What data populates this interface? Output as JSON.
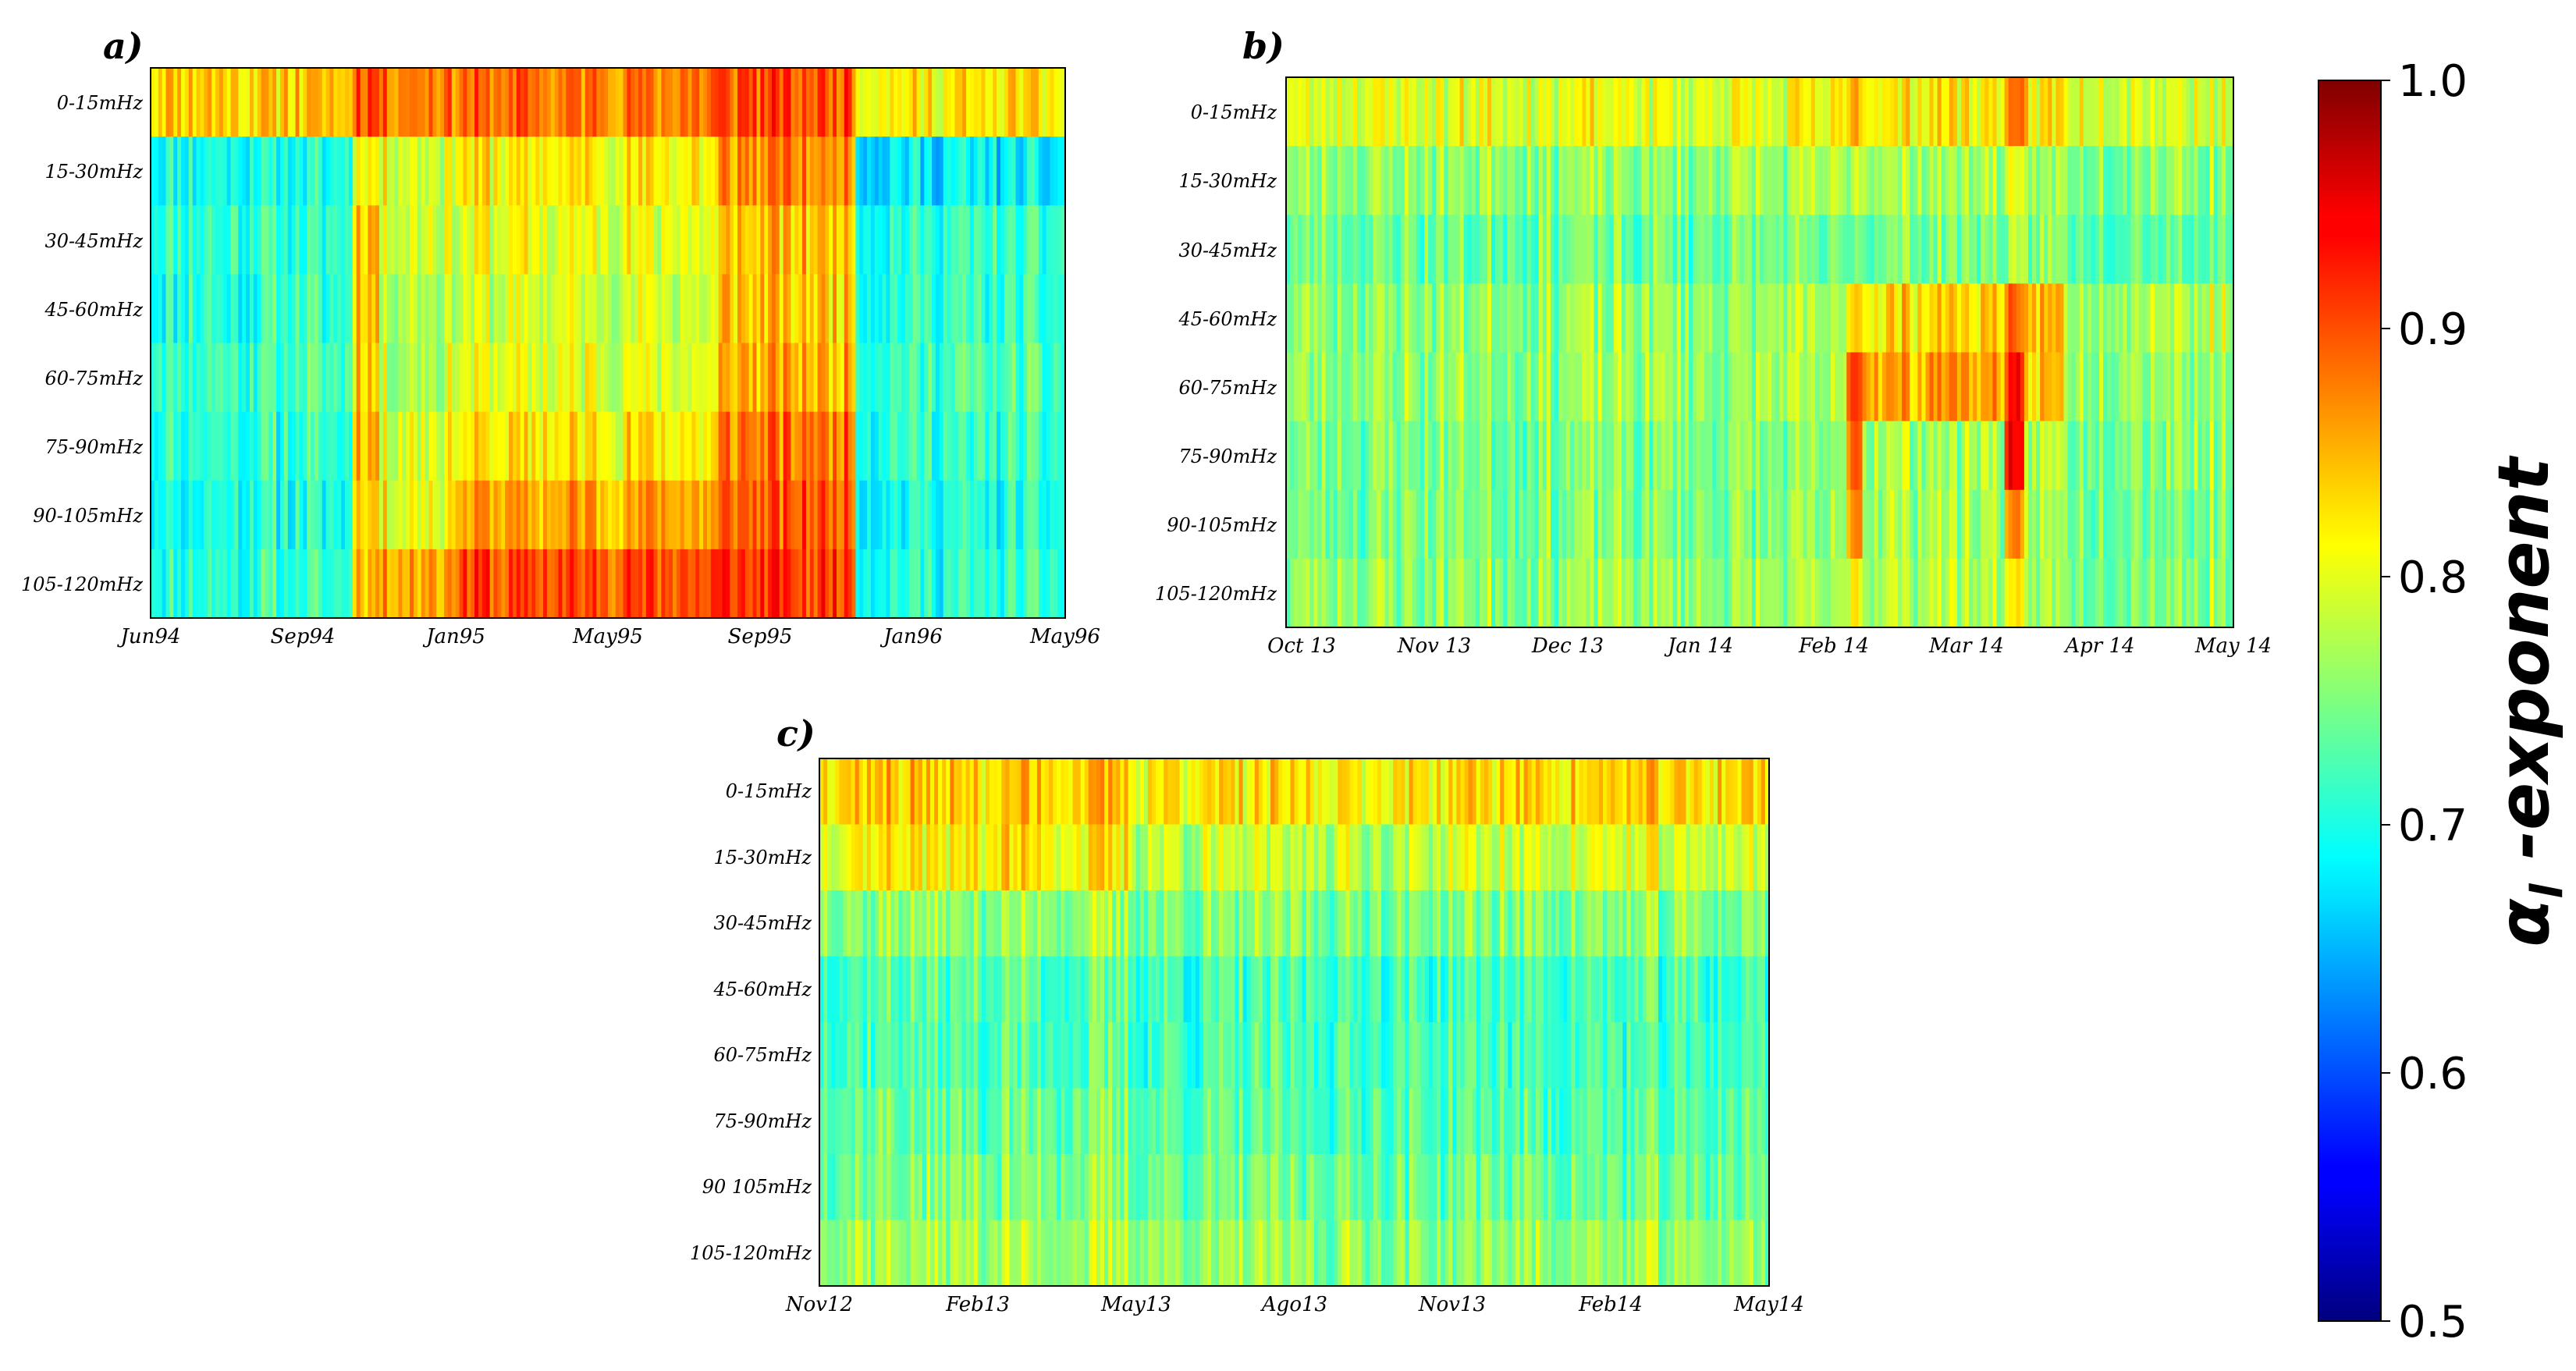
{
  "chart_data": [
    {
      "type": "heatmap",
      "panel": "a)",
      "rows": [
        "0-15mHz",
        "15-30mHz",
        "30-45mHz",
        "45-60mHz",
        "60-75mHz",
        "75-90mHz",
        "90-105mHz",
        "105-120mHz"
      ],
      "xticks": [
        "Jun94",
        "Sep94",
        "Jan95",
        "May95",
        "Sep95",
        "Jan96",
        "May96"
      ],
      "n_columns": 240,
      "segments": [
        {
          "start": 0.0,
          "end": 0.22,
          "levels": [
            0.84,
            0.7,
            0.71,
            0.71,
            0.72,
            0.71,
            0.7,
            0.71
          ]
        },
        {
          "start": 0.22,
          "end": 0.25,
          "levels": [
            0.9,
            0.82,
            0.86,
            0.85,
            0.84,
            0.85,
            0.84,
            0.86
          ]
        },
        {
          "start": 0.25,
          "end": 0.33,
          "levels": [
            0.88,
            0.8,
            0.8,
            0.78,
            0.78,
            0.8,
            0.81,
            0.86
          ]
        },
        {
          "start": 0.33,
          "end": 0.62,
          "levels": [
            0.88,
            0.82,
            0.8,
            0.79,
            0.8,
            0.82,
            0.86,
            0.9
          ]
        },
        {
          "start": 0.62,
          "end": 0.77,
          "levels": [
            0.9,
            0.87,
            0.84,
            0.84,
            0.85,
            0.88,
            0.89,
            0.91
          ]
        },
        {
          "start": 0.77,
          "end": 1.0,
          "levels": [
            0.82,
            0.68,
            0.71,
            0.71,
            0.72,
            0.71,
            0.7,
            0.71
          ]
        }
      ]
    },
    {
      "type": "heatmap",
      "panel": "b)",
      "rows": [
        "0-15mHz",
        "15-30mHz",
        "30-45mHz",
        "45-60mHz",
        "60-75mHz",
        "75-90mHz",
        "90-105mHz",
        "105-120mHz"
      ],
      "xticks": [
        "Oct 13",
        "Nov 13",
        "Dec 13",
        "Jan 14",
        "Feb 14",
        "Mar 14",
        "Apr 14",
        "May 14"
      ],
      "n_columns": 240,
      "segments": [
        {
          "start": 0.0,
          "end": 0.59,
          "levels": [
            0.8,
            0.76,
            0.74,
            0.76,
            0.76,
            0.75,
            0.75,
            0.76
          ]
        },
        {
          "start": 0.59,
          "end": 0.61,
          "levels": [
            0.86,
            0.79,
            0.75,
            0.85,
            0.91,
            0.91,
            0.89,
            0.82
          ]
        },
        {
          "start": 0.61,
          "end": 0.76,
          "levels": [
            0.82,
            0.77,
            0.75,
            0.83,
            0.86,
            0.77,
            0.77,
            0.78
          ]
        },
        {
          "start": 0.76,
          "end": 0.78,
          "levels": [
            0.86,
            0.78,
            0.75,
            0.86,
            0.91,
            0.91,
            0.84,
            0.8
          ]
        },
        {
          "start": 0.78,
          "end": 0.82,
          "levels": [
            0.82,
            0.76,
            0.75,
            0.85,
            0.84,
            0.77,
            0.76,
            0.77
          ]
        },
        {
          "start": 0.82,
          "end": 1.0,
          "levels": [
            0.8,
            0.76,
            0.74,
            0.78,
            0.77,
            0.76,
            0.75,
            0.76
          ]
        }
      ]
    },
    {
      "type": "heatmap",
      "panel": "c)",
      "rows": [
        "0-15mHz",
        "15-30mHz",
        "30-45mHz",
        "45-60mHz",
        "60-75mHz",
        "75-90mHz",
        "90 105mHz",
        "105-120mHz"
      ],
      "xticks": [
        "Nov12",
        "Feb13",
        "May13",
        "Ago13",
        "Nov13",
        "Feb14",
        "May14"
      ],
      "n_columns": 240,
      "segments": [
        {
          "start": 0.0,
          "end": 0.33,
          "levels": [
            0.84,
            0.82,
            0.76,
            0.73,
            0.73,
            0.74,
            0.75,
            0.77
          ]
        },
        {
          "start": 0.33,
          "end": 0.64,
          "levels": [
            0.82,
            0.78,
            0.75,
            0.72,
            0.72,
            0.73,
            0.74,
            0.76
          ]
        },
        {
          "start": 0.64,
          "end": 1.0,
          "levels": [
            0.83,
            0.79,
            0.75,
            0.72,
            0.72,
            0.73,
            0.74,
            0.76
          ]
        }
      ]
    }
  ],
  "colorbar": {
    "label": "α",
    "label_subscript": "l",
    "label_suffix": " -exponent",
    "min": 0.5,
    "max": 1.0,
    "ticks": [
      "1.0",
      "0.9",
      "0.8",
      "0.7",
      "0.6",
      "0.5"
    ]
  }
}
